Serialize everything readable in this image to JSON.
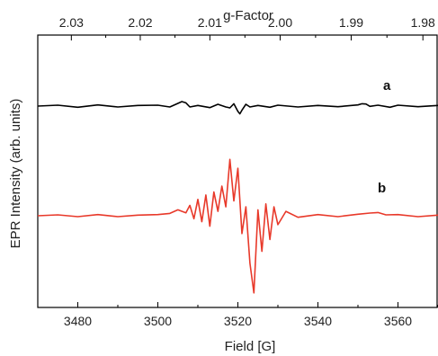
{
  "chart_data": {
    "type": "line",
    "xlabel": "Field [G]",
    "x2label": "g-Factor",
    "ylabel": "EPR Intensity (arb. units)",
    "xlim": [
      3470,
      3570
    ],
    "x_ticks": [
      3480,
      3500,
      3520,
      3540,
      3560
    ],
    "x_tick_labels": [
      "3480",
      "3500",
      "3520",
      "3540",
      "3560"
    ],
    "x2_ticks": [
      2.03,
      2.02,
      2.01,
      2.0,
      1.99,
      1.98
    ],
    "x2_tick_labels": [
      "2.03",
      "2.02",
      "2.01",
      "2.00",
      "1.99",
      "1.98"
    ],
    "y_ticks_labeled": false,
    "grid": false,
    "series": [
      {
        "name": "a",
        "color": "#000000",
        "x": [
          3470,
          3475,
          3480,
          3485,
          3490,
          3495,
          3500,
          3503,
          3505,
          3506,
          3507,
          3508,
          3510,
          3513,
          3515,
          3517,
          3518,
          3519,
          3520,
          3520.5,
          3521,
          3522,
          3523,
          3525,
          3528,
          3530,
          3535,
          3540,
          3545,
          3550,
          3551,
          3552,
          3553,
          3555,
          3558,
          3560,
          3565,
          3570
        ],
        "y": [
          0.0,
          0.3,
          -0.4,
          0.4,
          -0.3,
          0.2,
          0.3,
          -0.3,
          0.9,
          1.5,
          1.1,
          -0.3,
          0.2,
          -0.5,
          0.6,
          -0.3,
          -0.6,
          0.8,
          -1.8,
          -2.6,
          -1.4,
          0.6,
          -0.3,
          0.2,
          -0.4,
          0.3,
          -0.3,
          0.2,
          -0.2,
          0.4,
          0.8,
          0.7,
          -0.1,
          0.3,
          -0.4,
          0.3,
          -0.2,
          0.2
        ]
      },
      {
        "name": "b",
        "color": "#e8392a",
        "x": [
          3470,
          3475,
          3480,
          3485,
          3490,
          3495,
          3500,
          3503,
          3505,
          3507,
          3508,
          3509,
          3510,
          3511,
          3512,
          3513,
          3514,
          3515,
          3516,
          3517,
          3518,
          3519,
          3520,
          3521,
          3522,
          3523,
          3524,
          3525,
          3526,
          3527,
          3528,
          3529,
          3530,
          3532,
          3535,
          3540,
          3545,
          3550,
          3553,
          3555,
          3557,
          3560,
          3565,
          3570
        ],
        "y": [
          0.0,
          0.3,
          -0.3,
          0.4,
          -0.3,
          0.2,
          0.4,
          0.8,
          2.0,
          1.0,
          3.5,
          -1.0,
          5.5,
          -2.0,
          7.0,
          -3.5,
          8.0,
          1.5,
          10.0,
          3.0,
          19.0,
          5.0,
          16.0,
          -6.0,
          3.0,
          -16.0,
          -26.0,
          2.0,
          -12.0,
          4.0,
          -8.0,
          3.0,
          -3.0,
          1.5,
          -0.5,
          0.4,
          -0.3,
          0.5,
          0.9,
          1.1,
          0.3,
          0.4,
          -0.3,
          0.2
        ]
      }
    ]
  }
}
